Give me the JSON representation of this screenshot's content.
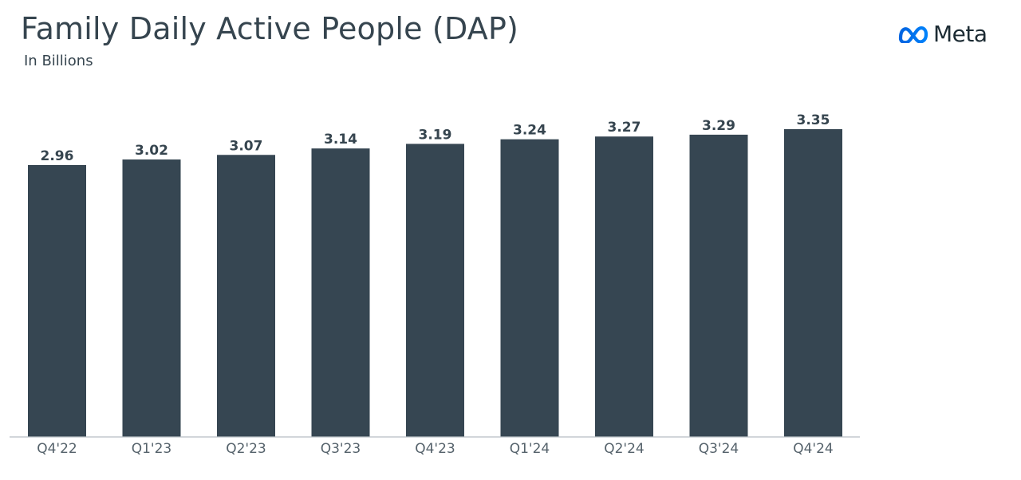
{
  "header": {
    "title": "Family Daily Active People (DAP)",
    "subtitle": "In Billions"
  },
  "logo": {
    "icon": "meta-infinity-icon",
    "word": "Meta",
    "color": "#0668E1"
  },
  "colors": {
    "bar": "#364652",
    "text": "#36454f"
  },
  "chart_data": {
    "type": "bar",
    "title": "Family Daily Active People (DAP)",
    "subtitle": "In Billions",
    "xlabel": "",
    "ylabel": "",
    "categories": [
      "Q4'22",
      "Q1'23",
      "Q2'23",
      "Q3'23",
      "Q4'23",
      "Q1'24",
      "Q2'24",
      "Q3'24",
      "Q4'24"
    ],
    "values": [
      2.96,
      3.02,
      3.07,
      3.14,
      3.19,
      3.24,
      3.27,
      3.29,
      3.35
    ],
    "value_labels": [
      "2.96",
      "3.02",
      "3.07",
      "3.14",
      "3.19",
      "3.24",
      "3.27",
      "3.29",
      "3.35"
    ],
    "ylim": [
      0,
      3.35
    ],
    "grid": false,
    "legend": "none"
  }
}
